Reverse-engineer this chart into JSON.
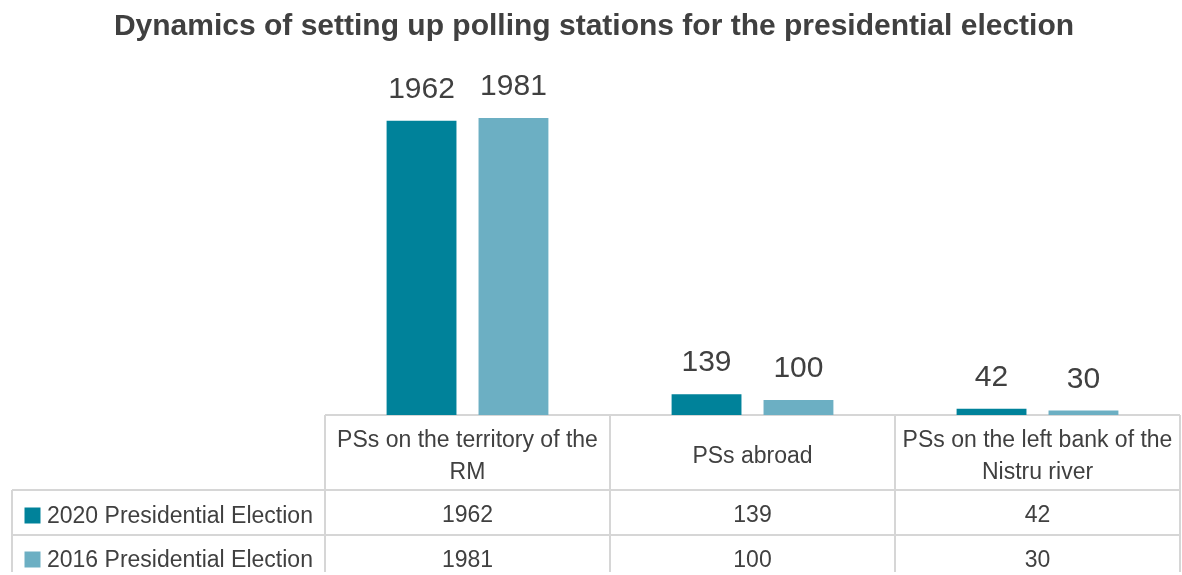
{
  "chart_data": [
    {
      "type": "bar",
      "title": "Dynamics of setting up polling stations for the presidential election",
      "categories": [
        "PSs on the territory of the RM",
        "PSs abroad",
        "PSs on the left bank of the Nistru river"
      ],
      "series": [
        {
          "name": "2020 Presidential Election",
          "color": "#00829a",
          "values": [
            1962,
            139,
            42
          ]
        },
        {
          "name": "2016 Presidential Election",
          "color": "#6cafc3",
          "values": [
            1981,
            100,
            30
          ]
        }
      ],
      "data_labels": true,
      "legend": "bottom left"
    },
    {
      "type": "other",
      "annotations": [
        "1962",
        "139",
        "42",
        "1981",
        "100",
        "30"
      ]
    }
  ]
}
